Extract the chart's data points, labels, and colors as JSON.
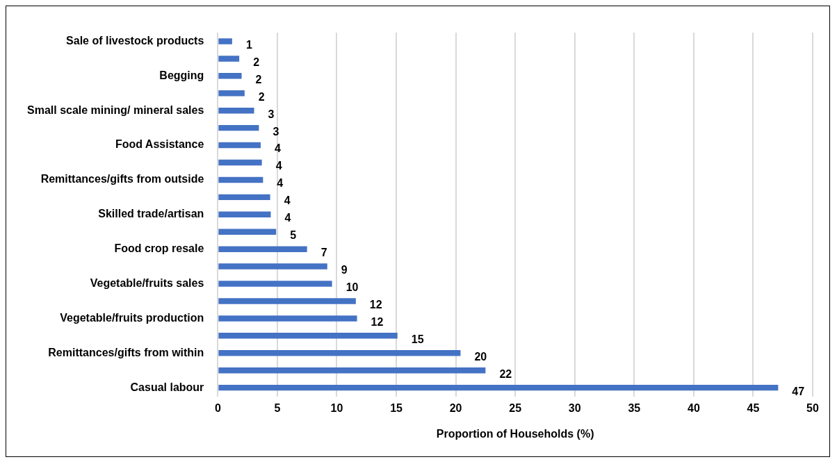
{
  "chart_data": {
    "type": "bar",
    "orientation": "horizontal",
    "xlabel": "Proportion of Households (%)",
    "categories": [
      "Sale of livestock products",
      null,
      "Begging",
      null,
      "Small scale mining/ mineral sales",
      null,
      "Food Assistance",
      null,
      "Remittances/gifts from outside",
      null,
      "Skilled trade/artisan",
      null,
      "Food crop resale",
      null,
      "Vegetable/fruits sales",
      null,
      "Vegetable/fruits production",
      null,
      "Remittances/gifts from within",
      null,
      "Casual labour"
    ],
    "values": [
      1.2,
      1.8,
      2.0,
      2.25,
      3.05,
      3.45,
      3.6,
      3.7,
      3.8,
      4.4,
      4.45,
      4.9,
      7.5,
      9.2,
      9.6,
      11.6,
      11.7,
      15.1,
      20.4,
      22.5,
      47.1
    ],
    "value_labels": [
      "1",
      "2",
      "2",
      "2",
      "3",
      "3",
      "4",
      "4",
      "4",
      "4",
      "4",
      "5",
      "7",
      "9",
      "10",
      "12",
      "12",
      "15",
      "20",
      "22",
      "47"
    ],
    "color": "#4472c4",
    "xlim": [
      0,
      50
    ],
    "xticks": [
      0,
      5,
      10,
      15,
      20,
      25,
      30,
      35,
      40,
      45,
      50
    ],
    "grid": "x",
    "legend": false
  }
}
